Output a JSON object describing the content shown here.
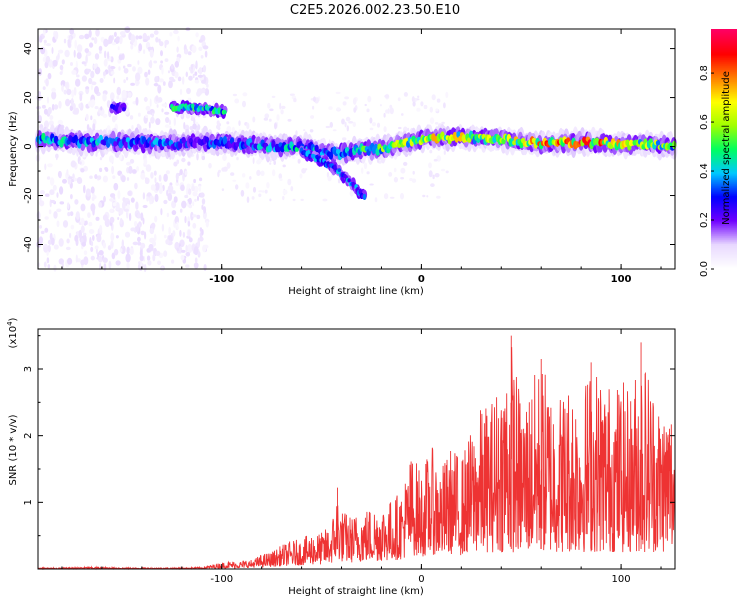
{
  "title": "C2E5.2026.002.23.50.E10",
  "chart_data": [
    {
      "type": "heatmap",
      "title": "C2E5.2026.002.23.50.E10",
      "xlabel": "Height of straight line (km)",
      "ylabel": "Frequency (Hz)",
      "xlim": [
        -192,
        127
      ],
      "ylim": [
        -50,
        48
      ],
      "xticks": [
        -100,
        0,
        100
      ],
      "yticks": [
        -40,
        -20,
        0,
        20,
        40
      ],
      "xtick_labels": [
        "-100",
        "0",
        "100"
      ],
      "ytick_labels": [
        "-40",
        "-20",
        "0",
        "20",
        "40"
      ],
      "colorbar": {
        "label": "Normalized spectral amplitude",
        "range": [
          0,
          0.98
        ],
        "ticks": [
          0,
          0.2,
          0.4,
          0.6,
          0.8
        ],
        "tick_labels": [
          "0.0",
          "0.2",
          "0.4",
          "0.6",
          "0.8"
        ],
        "colormap": [
          "#ffffff",
          "#e8d8ff",
          "#7000ff",
          "#0000ff",
          "#00c8ff",
          "#00ff60",
          "#a0ff00",
          "#ffff00",
          "#ff8000",
          "#ff0000",
          "#ff0060"
        ]
      },
      "ridge": {
        "description": "main spectral ridge frequency vs height",
        "x": [
          -192,
          -170,
          -150,
          -130,
          -110,
          -90,
          -75,
          -60,
          -50,
          -42,
          -35,
          -20,
          -10,
          0,
          20,
          40,
          60,
          80,
          100,
          115,
          127
        ],
        "y": [
          3,
          2,
          2,
          1,
          2,
          1,
          0,
          0,
          -2,
          -3,
          -2,
          -1,
          1,
          3,
          4,
          3,
          1,
          2,
          1,
          1,
          0
        ],
        "amplitude": [
          0.45,
          0.4,
          0.35,
          0.35,
          0.3,
          0.35,
          0.4,
          0.45,
          0.4,
          0.35,
          0.45,
          0.55,
          0.6,
          0.7,
          0.65,
          0.6,
          0.75,
          0.85,
          0.7,
          0.6,
          0.55
        ]
      },
      "secondary_features": [
        {
          "label": "upper band",
          "x": [
            -125,
            -115,
            -105,
            -98
          ],
          "y": [
            16,
            16,
            15,
            14
          ],
          "amplitude": 0.45
        },
        {
          "label": "descending branch",
          "x": [
            -60,
            -52,
            -45,
            -40,
            -35,
            -28
          ],
          "y": [
            -2,
            -5,
            -8,
            -11,
            -15,
            -21
          ],
          "amplitude": 0.35
        },
        {
          "label": "blob",
          "x": [
            -152
          ],
          "y": [
            16
          ],
          "amplitude": 0.25
        }
      ]
    },
    {
      "type": "line",
      "xlabel": "Height of straight line (km)",
      "ylabel": "SNR (10 * v/v)",
      "y_multiplier": "(x10^4)",
      "y_multiplier_base": "(x10",
      "y_multiplier_exp": "4",
      "y_multiplier_close": ")",
      "xlim": [
        -192,
        127
      ],
      "ylim": [
        0,
        3.6
      ],
      "xticks": [
        -100,
        0,
        100
      ],
      "yticks": [
        1,
        2,
        3
      ],
      "xtick_labels": [
        "-100",
        "0",
        "100"
      ],
      "ytick_labels": [
        "1",
        "2",
        "3"
      ],
      "series": [
        {
          "name": "SNR",
          "color": "#ee3333",
          "x": [
            -192,
            -180,
            -170,
            -160,
            -150,
            -140,
            -130,
            -120,
            -110,
            -100,
            -95,
            -90,
            -85,
            -80,
            -75,
            -70,
            -65,
            -60,
            -55,
            -50,
            -45,
            -42,
            -40,
            -35,
            -30,
            -25,
            -20,
            -15,
            -10,
            -5,
            0,
            5,
            10,
            15,
            20,
            25,
            30,
            35,
            40,
            45,
            50,
            55,
            60,
            65,
            70,
            75,
            80,
            85,
            90,
            95,
            100,
            105,
            110,
            115,
            120,
            125,
            127
          ],
          "envelope_max": [
            0.02,
            0.02,
            0.03,
            0.03,
            0.02,
            0.02,
            0.02,
            0.02,
            0.03,
            0.1,
            0.12,
            0.12,
            0.14,
            0.22,
            0.26,
            0.36,
            0.43,
            0.45,
            0.55,
            0.55,
            0.7,
            1.22,
            0.9,
            0.8,
            0.9,
            0.95,
            1.0,
            1.05,
            1.2,
            1.75,
            1.5,
            1.85,
            1.55,
            1.85,
            1.7,
            2.1,
            2.45,
            2.55,
            2.95,
            3.5,
            2.55,
            2.85,
            3.15,
            2.8,
            2.7,
            2.9,
            2.7,
            3.1,
            3.0,
            2.8,
            2.85,
            2.7,
            3.4,
            2.95,
            2.5,
            2.6,
            2.3
          ]
        }
      ]
    }
  ]
}
